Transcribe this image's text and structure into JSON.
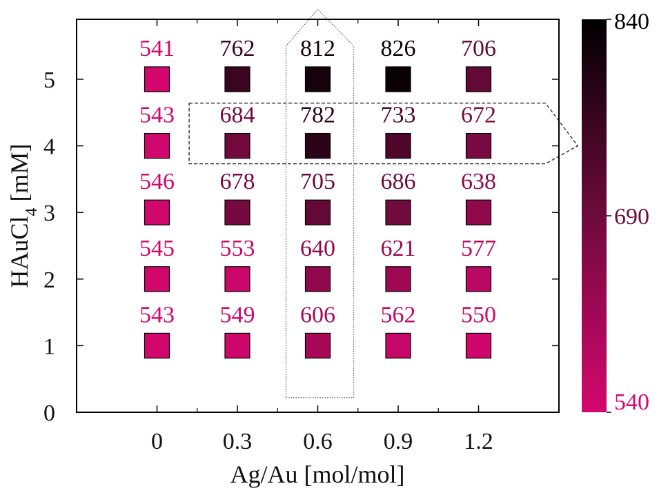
{
  "chart_data": {
    "type": "heatmap",
    "xlabel": "Ag/Au [mol/mol]",
    "ylabel": {
      "main": "HAuCl",
      "sub": "4",
      "suffix": " [mM]"
    },
    "x": [
      "0",
      "0.3",
      "0.6",
      "0.9",
      "1.2"
    ],
    "x_values": [
      0,
      0.3,
      0.6,
      0.9,
      1.2
    ],
    "y_ticks": [
      "0",
      "1",
      "2",
      "3",
      "4",
      "5"
    ],
    "y_values": [
      0,
      1,
      2,
      3,
      4,
      5
    ],
    "xlim": [
      -0.3,
      1.5
    ],
    "ylim": [
      0,
      5.9
    ],
    "cells": [
      {
        "x": 0,
        "y": 5,
        "value": 541
      },
      {
        "x": 0.3,
        "y": 5,
        "value": 762
      },
      {
        "x": 0.6,
        "y": 5,
        "value": 812
      },
      {
        "x": 0.9,
        "y": 5,
        "value": 826
      },
      {
        "x": 1.2,
        "y": 5,
        "value": 706
      },
      {
        "x": 0,
        "y": 4,
        "value": 543
      },
      {
        "x": 0.3,
        "y": 4,
        "value": 684
      },
      {
        "x": 0.6,
        "y": 4,
        "value": 782
      },
      {
        "x": 0.9,
        "y": 4,
        "value": 733
      },
      {
        "x": 1.2,
        "y": 4,
        "value": 672
      },
      {
        "x": 0,
        "y": 3,
        "value": 546
      },
      {
        "x": 0.3,
        "y": 3,
        "value": 678
      },
      {
        "x": 0.6,
        "y": 3,
        "value": 705
      },
      {
        "x": 0.9,
        "y": 3,
        "value": 686
      },
      {
        "x": 1.2,
        "y": 3,
        "value": 638
      },
      {
        "x": 0,
        "y": 2,
        "value": 545
      },
      {
        "x": 0.3,
        "y": 2,
        "value": 553
      },
      {
        "x": 0.6,
        "y": 2,
        "value": 640
      },
      {
        "x": 0.9,
        "y": 2,
        "value": 621
      },
      {
        "x": 1.2,
        "y": 2,
        "value": 577
      },
      {
        "x": 0,
        "y": 1,
        "value": 543
      },
      {
        "x": 0.3,
        "y": 1,
        "value": 549
      },
      {
        "x": 0.6,
        "y": 1,
        "value": 606
      },
      {
        "x": 0.9,
        "y": 1,
        "value": 562
      },
      {
        "x": 1.2,
        "y": 1,
        "value": 550
      }
    ],
    "colorbar": {
      "min": 540,
      "max": 840,
      "tick_labels": [
        "840",
        "690",
        "540"
      ],
      "tick_values": [
        840,
        690,
        540
      ],
      "low_color": "#d4076e",
      "mid_color": "#6e0a3c",
      "high_color": "#000000"
    },
    "highlights": [
      {
        "kind": "column",
        "x": 0.6,
        "line": "dotted"
      },
      {
        "kind": "row",
        "y": 4,
        "line": "dashed"
      }
    ],
    "grid": false
  }
}
